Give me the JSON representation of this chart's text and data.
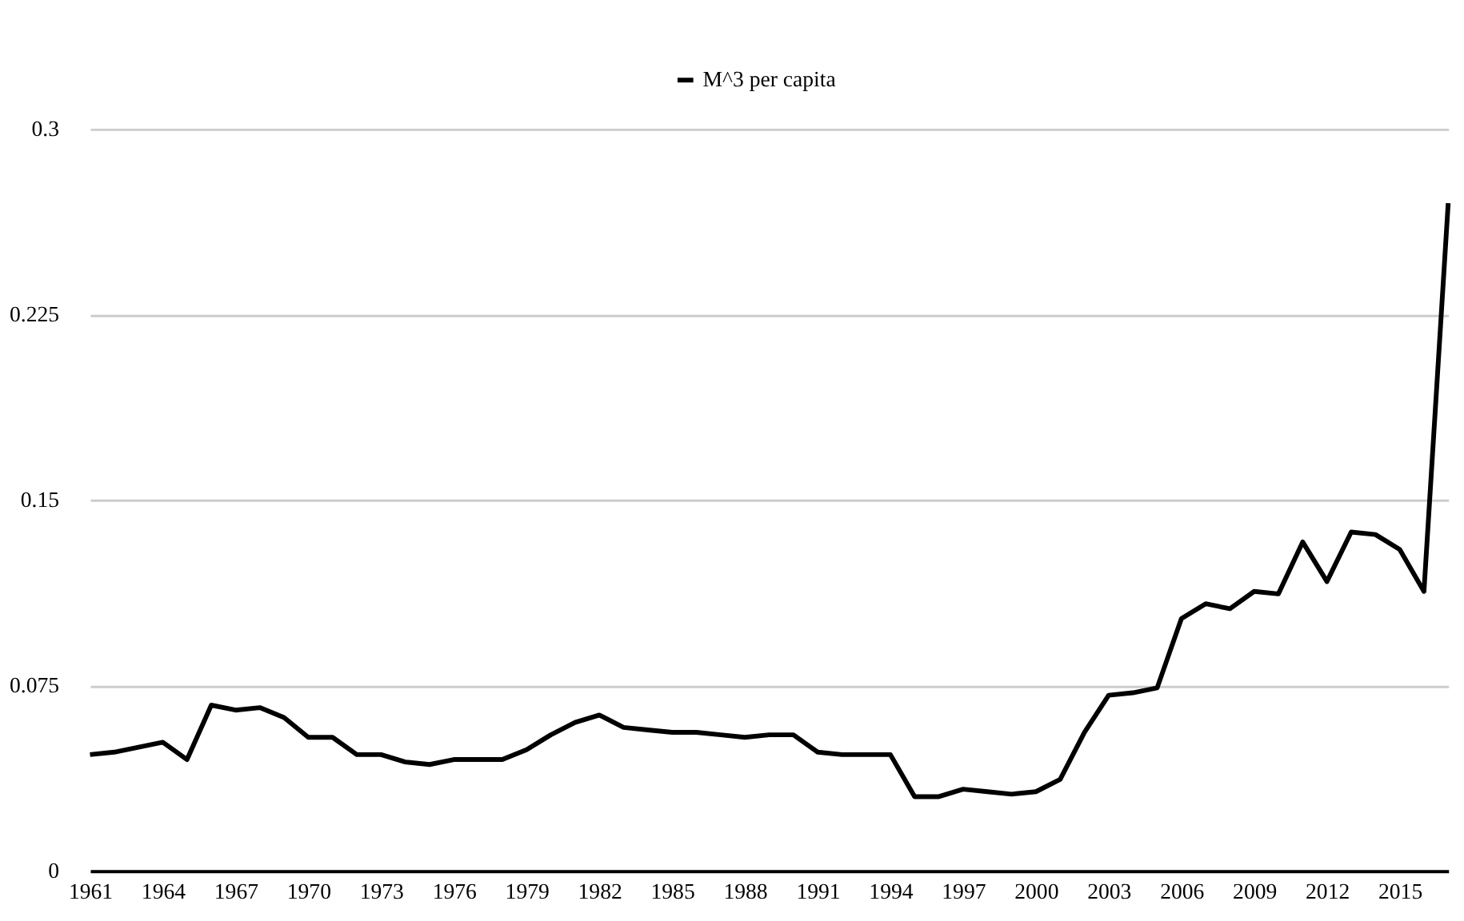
{
  "chart_data": {
    "type": "line",
    "categories": [
      "1961",
      null,
      null,
      "1964",
      null,
      null,
      "1967",
      null,
      null,
      "1970",
      null,
      null,
      "1973",
      null,
      null,
      "1976",
      null,
      null,
      "1979",
      null,
      null,
      "1982",
      null,
      null,
      "1985",
      null,
      null,
      "1988",
      null,
      null,
      "1991",
      null,
      null,
      "1994",
      null,
      null,
      "1997",
      null,
      null,
      "2000",
      null,
      null,
      "2003",
      null,
      null,
      "2006",
      null,
      null,
      "2009",
      null,
      null,
      "2012",
      null,
      null,
      "2015",
      null,
      null
    ],
    "series": [
      {
        "name": "M^3 per capita",
        "color": "#000000",
        "values": [
          0.047,
          0.048,
          0.05,
          0.052,
          0.045,
          0.067,
          0.065,
          0.066,
          0.062,
          0.054,
          0.054,
          0.047,
          0.047,
          0.044,
          0.043,
          0.045,
          0.045,
          0.045,
          0.049,
          0.055,
          0.06,
          0.063,
          0.058,
          0.057,
          0.056,
          0.056,
          0.055,
          0.054,
          0.055,
          0.055,
          0.048,
          0.047,
          0.047,
          0.047,
          0.03,
          0.03,
          0.033,
          0.032,
          0.031,
          0.032,
          0.037,
          0.056,
          0.071,
          0.072,
          0.074,
          0.102,
          0.108,
          0.106,
          0.113,
          0.112,
          0.133,
          0.117,
          0.137,
          0.136,
          0.13,
          0.113,
          0.27
        ]
      }
    ],
    "ylim": [
      0,
      0.3
    ],
    "yticks": [
      0,
      0.075,
      0.15,
      0.225,
      0.3
    ],
    "grid": "y",
    "legend": "top",
    "marker": "none",
    "line_style": "solid"
  }
}
